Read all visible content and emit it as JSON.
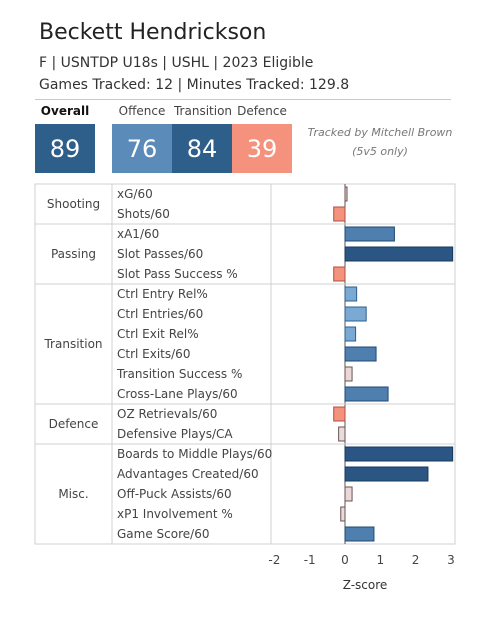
{
  "header": {
    "name": "Beckett Hendrickson",
    "line1": "F | USNTDP U18s | USHL | 2023 Eligible",
    "line2": "Games Tracked: 12 | Minutes Tracked: 129.8"
  },
  "scores": [
    {
      "label": "Overall",
      "value": "89",
      "color": "#2e5f8a"
    },
    {
      "label": "Offence",
      "value": "76",
      "color": "#5b8bb8"
    },
    {
      "label": "Transition",
      "value": "84",
      "color": "#2e5f8a"
    },
    {
      "label": "Defence",
      "value": "39",
      "color": "#f4927e"
    }
  ],
  "tracked_by": {
    "line1": "Tracked by Mitchell Brown",
    "line2": "(5v5 only)"
  },
  "chart_data": {
    "type": "bar",
    "orientation": "horizontal",
    "xlabel": "Z-score",
    "xlim": [
      -2.3,
      3.1
    ],
    "xticks": [
      "-2",
      "-1",
      "0",
      "1",
      "2",
      "3"
    ],
    "groups": [
      {
        "name": "Shooting",
        "metrics": [
          {
            "label": "xG/60",
            "value": 0.02
          },
          {
            "label": "Shots/60",
            "value": -0.32
          }
        ]
      },
      {
        "name": "Passing",
        "metrics": [
          {
            "label": "xA1/60",
            "value": 1.4
          },
          {
            "label": "Slot Passes/60",
            "value": 3.05
          },
          {
            "label": "Slot Pass Success %",
            "value": -0.32
          }
        ]
      },
      {
        "name": "Transition",
        "metrics": [
          {
            "label": "Ctrl Entry Rel%",
            "value": 0.33
          },
          {
            "label": "Ctrl Entries/60",
            "value": 0.6
          },
          {
            "label": "Ctrl Exit Rel%",
            "value": 0.3
          },
          {
            "label": "Ctrl Exits/60",
            "value": 0.88
          },
          {
            "label": "Transition Success %",
            "value": 0.2
          },
          {
            "label": "Cross-Lane Plays/60",
            "value": 1.22
          }
        ]
      },
      {
        "name": "Defence",
        "metrics": [
          {
            "label": "OZ Retrievals/60",
            "value": -0.32
          },
          {
            "label": "Defensive Plays/CA",
            "value": -0.18
          }
        ]
      },
      {
        "name": "Misc.",
        "metrics": [
          {
            "label": "Boards to Middle Plays/60",
            "value": 3.05
          },
          {
            "label": "Advantages Created/60",
            "value": 2.35
          },
          {
            "label": "Off-Puck Assists/60",
            "value": 0.2
          },
          {
            "label": "xP1 Involvement %",
            "value": -0.12
          },
          {
            "label": "Game Score/60",
            "value": 0.82
          }
        ]
      }
    ]
  }
}
